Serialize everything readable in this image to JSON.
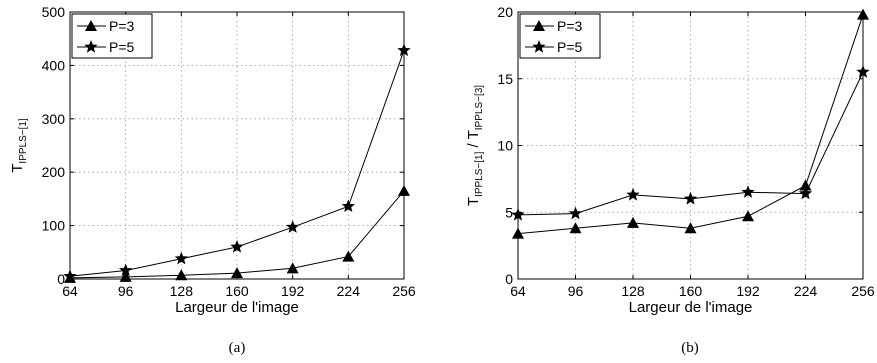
{
  "chart_data": [
    {
      "type": "line",
      "panel_label": "(a)",
      "xlabel": "Largeur de l'image",
      "ylabel_main": "T",
      "ylabel_sub": "IPPLS−[1]",
      "x": [
        64,
        96,
        128,
        160,
        192,
        224,
        256
      ],
      "xticks": [
        "64",
        "96",
        "128",
        "160",
        "192",
        "224",
        "256"
      ],
      "yticks": [
        "0",
        "100",
        "200",
        "300",
        "400",
        "500"
      ],
      "xlim": [
        64,
        256
      ],
      "ylim": [
        0,
        500
      ],
      "grid": true,
      "legend_position": "top-left",
      "series": [
        {
          "name": "P=3",
          "marker": "triangle",
          "values": [
            2,
            4,
            7,
            11,
            20,
            42,
            165
          ]
        },
        {
          "name": "P=5",
          "marker": "star",
          "values": [
            5,
            16,
            38,
            60,
            97,
            136,
            428
          ]
        }
      ]
    },
    {
      "type": "line",
      "panel_label": "(b)",
      "xlabel": "Largeur de l'image",
      "ylabel_main": "T",
      "ylabel_sub": "IPPLS−[1]",
      "ylabel_sep": " / T",
      "ylabel_sub2": "IPPLS−[3]",
      "x": [
        64,
        96,
        128,
        160,
        192,
        224,
        256
      ],
      "xticks": [
        "64",
        "96",
        "128",
        "160",
        "192",
        "224",
        "256"
      ],
      "yticks": [
        "0",
        "5",
        "10",
        "15",
        "20"
      ],
      "xlim": [
        64,
        256
      ],
      "ylim": [
        0,
        20
      ],
      "grid": true,
      "legend_position": "top-left",
      "series": [
        {
          "name": "P=3",
          "marker": "triangle",
          "values": [
            3.4,
            3.8,
            4.2,
            3.8,
            4.7,
            7.0,
            19.8
          ]
        },
        {
          "name": "P=5",
          "marker": "star",
          "values": [
            4.8,
            4.9,
            6.3,
            6.0,
            6.5,
            6.4,
            15.5
          ]
        }
      ]
    }
  ]
}
